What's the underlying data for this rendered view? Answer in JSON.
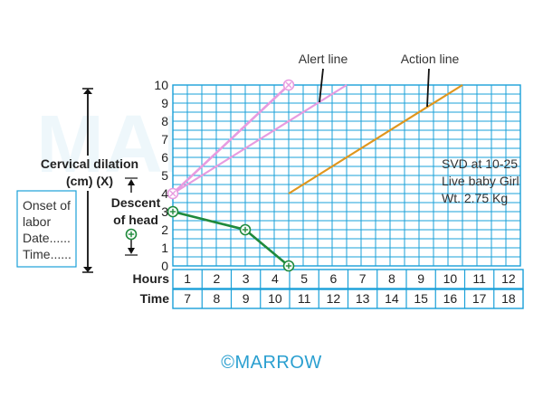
{
  "chart_data": {
    "type": "line",
    "ylabel": "Cervical dilation (cm) (X)",
    "descent_label": "Descent of head",
    "onset_box": [
      "Onset of",
      "labor",
      "Date......",
      "Time......"
    ],
    "ylim": [
      0,
      10
    ],
    "y_ticks": [
      "0",
      "1",
      "2",
      "3",
      "4",
      "5",
      "6",
      "7",
      "8",
      "9",
      "10"
    ],
    "hours_label": "Hours",
    "hours": [
      "1",
      "2",
      "3",
      "4",
      "5",
      "6",
      "7",
      "8",
      "9",
      "10",
      "11",
      "12"
    ],
    "time_label": "Time",
    "times": [
      "7",
      "8",
      "9",
      "10",
      "11",
      "12",
      "13",
      "14",
      "15",
      "16",
      "17",
      "18"
    ],
    "grid": true,
    "series": [
      {
        "name": "Alert line",
        "color": "#e79be0",
        "points": [
          [
            0,
            4
          ],
          [
            6,
            10
          ]
        ]
      },
      {
        "name": "Action line",
        "color": "#e0961d",
        "points": [
          [
            4,
            4
          ],
          [
            10,
            10
          ]
        ]
      },
      {
        "name": "",
        "kind": "dilation",
        "marker": "circle-x",
        "color": "#e79be0",
        "points": [
          [
            0,
            4
          ],
          [
            4,
            10
          ]
        ]
      },
      {
        "name": "",
        "kind": "descent",
        "marker": "circle-plus",
        "color": "#1f8a3c",
        "points": [
          [
            0,
            3
          ],
          [
            2.5,
            2
          ],
          [
            4,
            0
          ]
        ]
      }
    ],
    "annotation": [
      "SVD at 10-25",
      "Live baby Girl",
      "Wt. 2.75 Kg"
    ],
    "watermark": "MARROW",
    "footer": "©MARROW"
  }
}
